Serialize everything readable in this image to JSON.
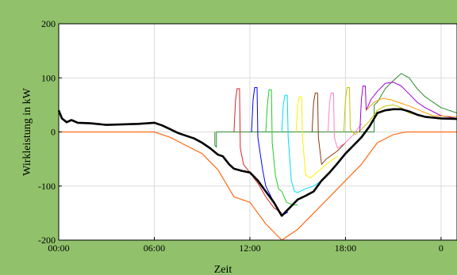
{
  "chart_data": {
    "type": "line",
    "title": "",
    "xlabel": "Zeit",
    "ylabel": "Wirkleistung in kW",
    "xlim": [
      0,
      25
    ],
    "ylim": [
      -200,
      200
    ],
    "x_ticks": [
      0,
      6,
      12,
      18,
      24
    ],
    "x_tick_labels": [
      "00:00",
      "06:00",
      "12:00",
      "18:00",
      "0"
    ],
    "y_ticks": [
      -200,
      -100,
      0,
      100,
      200
    ],
    "y_tick_labels": [
      "-200",
      "-100",
      "0",
      "100",
      "200"
    ],
    "grid": true,
    "background": "#91c26b",
    "plot_background": "#ffffff",
    "series": [
      {
        "color": "#ff6a13",
        "width": 1.2,
        "points": [
          [
            0,
            0
          ],
          [
            6,
            0
          ],
          [
            7,
            -10
          ],
          [
            8,
            -25
          ],
          [
            9,
            -40
          ],
          [
            10,
            -70
          ],
          [
            11,
            -120
          ],
          [
            12,
            -130
          ],
          [
            13,
            -170
          ],
          [
            14,
            -200
          ],
          [
            15,
            -180
          ],
          [
            16,
            -150
          ],
          [
            17,
            -120
          ],
          [
            18,
            -90
          ],
          [
            19,
            -60
          ],
          [
            20,
            -20
          ],
          [
            21,
            -5
          ],
          [
            21.8,
            0
          ],
          [
            25,
            0
          ]
        ]
      },
      {
        "color": "#2f8a2f",
        "width": 1,
        "points": [
          [
            9.8,
            0
          ],
          [
            9.8,
            -25
          ],
          [
            9.9,
            -28
          ],
          [
            9.9,
            0
          ],
          [
            19.8,
            0
          ],
          [
            19.8,
            50
          ],
          [
            20,
            55
          ],
          [
            20.5,
            80
          ],
          [
            21,
            95
          ],
          [
            21.5,
            108
          ],
          [
            22,
            100
          ],
          [
            22.5,
            80
          ],
          [
            23,
            65
          ],
          [
            24,
            45
          ],
          [
            25,
            35
          ]
        ]
      },
      {
        "color": "#d62728",
        "width": 1,
        "points": [
          [
            11,
            0
          ],
          [
            11.1,
            60
          ],
          [
            11.2,
            80
          ],
          [
            11.35,
            80
          ],
          [
            11.4,
            -30
          ],
          [
            11.6,
            -60
          ],
          [
            12,
            -75
          ],
          [
            12.5,
            -95
          ],
          [
            13,
            -120
          ],
          [
            13.5,
            -140
          ],
          [
            14,
            -150
          ]
        ]
      },
      {
        "color": "#0000ff",
        "width": 1,
        "points": [
          [
            12.1,
            0
          ],
          [
            12.2,
            60
          ],
          [
            12.3,
            82
          ],
          [
            12.45,
            82
          ],
          [
            12.5,
            -10
          ],
          [
            12.8,
            -70
          ],
          [
            13,
            -100
          ],
          [
            13.5,
            -130
          ],
          [
            14,
            -155
          ],
          [
            14.4,
            -148
          ]
        ]
      },
      {
        "color": "#22cc22",
        "width": 1,
        "points": [
          [
            13,
            0
          ],
          [
            13.1,
            50
          ],
          [
            13.2,
            78
          ],
          [
            13.35,
            78
          ],
          [
            13.4,
            -20
          ],
          [
            13.6,
            -80
          ],
          [
            13.8,
            -105
          ],
          [
            14,
            -110
          ],
          [
            14.3,
            -130
          ],
          [
            14.7,
            -135
          ],
          [
            15,
            -135
          ]
        ]
      },
      {
        "color": "#00d9ff",
        "width": 1,
        "points": [
          [
            14,
            0
          ],
          [
            14.1,
            50
          ],
          [
            14.2,
            68
          ],
          [
            14.35,
            68
          ],
          [
            14.4,
            -10
          ],
          [
            14.6,
            -90
          ],
          [
            14.8,
            -110
          ],
          [
            15,
            -112
          ],
          [
            15.5,
            -105
          ],
          [
            16,
            -100
          ],
          [
            16.5,
            -90
          ]
        ]
      },
      {
        "color": "#ffee00",
        "width": 1,
        "points": [
          [
            14.9,
            0
          ],
          [
            15,
            50
          ],
          [
            15.1,
            65
          ],
          [
            15.25,
            65
          ],
          [
            15.3,
            -10
          ],
          [
            15.5,
            -80
          ],
          [
            15.8,
            -85
          ],
          [
            16.2,
            -75
          ],
          [
            16.8,
            -60
          ],
          [
            17.5,
            -45
          ]
        ]
      },
      {
        "color": "#8b3a0f",
        "width": 1,
        "points": [
          [
            15.9,
            0
          ],
          [
            16,
            55
          ],
          [
            16.1,
            72
          ],
          [
            16.25,
            72
          ],
          [
            16.3,
            -10
          ],
          [
            16.5,
            -60
          ],
          [
            16.8,
            -50
          ],
          [
            17.5,
            -35
          ],
          [
            18,
            -20
          ]
        ]
      },
      {
        "color": "#ff80c8",
        "width": 1,
        "points": [
          [
            16.9,
            0
          ],
          [
            17,
            55
          ],
          [
            17.1,
            72
          ],
          [
            17.25,
            72
          ],
          [
            17.3,
            -10
          ],
          [
            17.5,
            -30
          ],
          [
            18,
            -20
          ],
          [
            18.5,
            -5
          ],
          [
            19,
            15
          ]
        ]
      },
      {
        "color": "#c4c400",
        "width": 1,
        "points": [
          [
            17.9,
            0
          ],
          [
            18,
            60
          ],
          [
            18.1,
            82
          ],
          [
            18.25,
            82
          ],
          [
            18.3,
            5
          ],
          [
            18.6,
            -5
          ],
          [
            19,
            5
          ],
          [
            19.5,
            20
          ],
          [
            20,
            40
          ],
          [
            20.5,
            48
          ],
          [
            21,
            50
          ],
          [
            21.5,
            45
          ],
          [
            22,
            35
          ],
          [
            23,
            28
          ],
          [
            24,
            25
          ]
        ]
      },
      {
        "color": "#9a00d9",
        "width": 1,
        "points": [
          [
            18.9,
            0
          ],
          [
            19,
            60
          ],
          [
            19.1,
            85
          ],
          [
            19.25,
            85
          ],
          [
            19.3,
            40
          ],
          [
            19.6,
            60
          ],
          [
            20,
            75
          ],
          [
            20.5,
            90
          ],
          [
            21,
            92
          ],
          [
            21.5,
            85
          ],
          [
            22,
            70
          ],
          [
            22.5,
            55
          ],
          [
            23,
            45
          ],
          [
            24,
            30
          ],
          [
            25,
            25
          ]
        ]
      },
      {
        "color": "#ff9900",
        "width": 1,
        "points": [
          [
            19.3,
            40
          ],
          [
            19.8,
            55
          ],
          [
            20.3,
            62
          ],
          [
            20.8,
            60
          ],
          [
            21.3,
            55
          ],
          [
            22,
            48
          ],
          [
            22.8,
            38
          ],
          [
            23.5,
            30
          ],
          [
            25,
            28
          ]
        ]
      },
      {
        "color": "#000000",
        "width": 2.6,
        "points": [
          [
            0,
            40
          ],
          [
            0.2,
            25
          ],
          [
            0.5,
            18
          ],
          [
            0.8,
            22
          ],
          [
            1.2,
            17
          ],
          [
            2,
            16
          ],
          [
            3,
            13
          ],
          [
            4,
            14
          ],
          [
            5,
            15
          ],
          [
            6,
            17
          ],
          [
            6.5,
            12
          ],
          [
            7,
            5
          ],
          [
            7.5,
            -2
          ],
          [
            8,
            -7
          ],
          [
            8.5,
            -12
          ],
          [
            9,
            -20
          ],
          [
            9.5,
            -30
          ],
          [
            10,
            -42
          ],
          [
            10.3,
            -45
          ],
          [
            10.7,
            -60
          ],
          [
            11,
            -68
          ],
          [
            11.5,
            -72
          ],
          [
            12,
            -75
          ],
          [
            12.5,
            -90
          ],
          [
            13,
            -110
          ],
          [
            13.5,
            -130
          ],
          [
            14,
            -155
          ],
          [
            14.5,
            -140
          ],
          [
            15,
            -125
          ],
          [
            15.5,
            -118
          ],
          [
            16,
            -110
          ],
          [
            16.5,
            -90
          ],
          [
            17,
            -75
          ],
          [
            17.5,
            -58
          ],
          [
            18,
            -40
          ],
          [
            18.5,
            -25
          ],
          [
            19,
            -10
          ],
          [
            19.5,
            10
          ],
          [
            20,
            35
          ],
          [
            20.5,
            40
          ],
          [
            21,
            42
          ],
          [
            21.5,
            42
          ],
          [
            22,
            38
          ],
          [
            22.5,
            32
          ],
          [
            23,
            28
          ],
          [
            24,
            25
          ],
          [
            25,
            24
          ]
        ]
      }
    ]
  }
}
